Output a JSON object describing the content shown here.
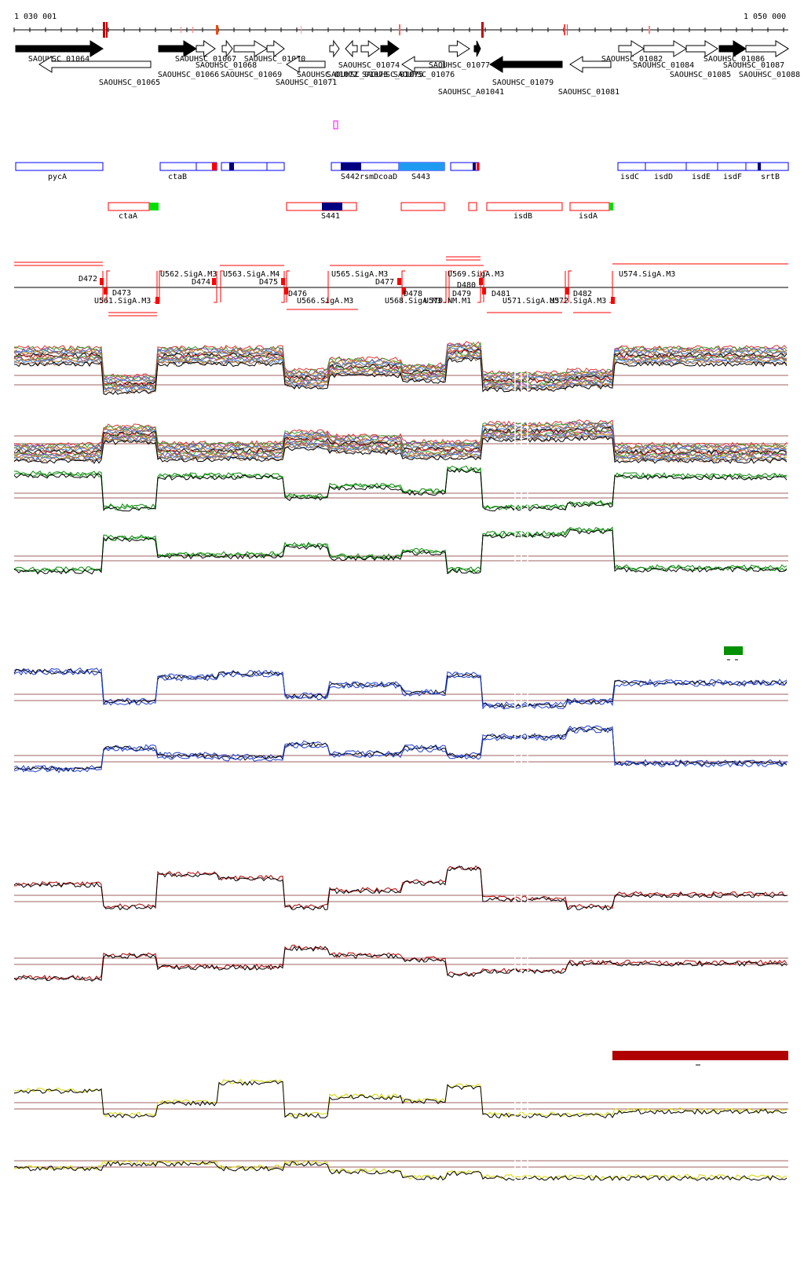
{
  "ruler": {
    "start_label": "1 030 001",
    "end_label": "1 050 000"
  },
  "colors": {
    "gene_forward_strong": "#000000",
    "gene_outline": "#000000",
    "annotation_blue": "#0000ff",
    "annotation_dark_blue": "#000080",
    "annotation_light_blue": "#1e9bf0",
    "annotation_red": "#ff0000",
    "annotation_green": "#00e000",
    "promoter_red": "#ff0000",
    "trace_green": "#0b8a0b",
    "trace_blue": "#1f3fd0",
    "trace_red": "#b00000",
    "trace_yellow": "#d6d600",
    "trace_black": "#000000",
    "threshold_brown": "#a06060",
    "bar_green": "#009000",
    "bar_darkred": "#b00000",
    "magenta_box": "#ff00ff"
  },
  "genes": [
    {
      "label": "SAOUHSC_01064"
    },
    {
      "label": "SAOUHSC_01065"
    },
    {
      "label": "SAOUHSC_01066"
    },
    {
      "label": "SAOUHSC_01067"
    },
    {
      "label": "SAOUHSC_01068"
    },
    {
      "label": "SAOUHSC_01069"
    },
    {
      "label": "SAOUHSC_01070"
    },
    {
      "label": "SAOUHSC_01071"
    },
    {
      "label": "SAOUHSC_01072"
    },
    {
      "label": "SAOUHSC_01073"
    },
    {
      "label": "SAOUHSC_01074"
    },
    {
      "label": "SAOUHSC_01075"
    },
    {
      "label": "SAOUHSC_01076"
    },
    {
      "label": "SAOUHSC_01077"
    },
    {
      "label": "SAOUHSC_A01041"
    },
    {
      "label": "SAOUHSC_01079"
    },
    {
      "label": "SAOUHSC_01081"
    },
    {
      "label": "SAOUHSC_01082"
    },
    {
      "label": "SAOUHSC_01084"
    },
    {
      "label": "SAOUHSC_01085"
    },
    {
      "label": "SAOUHSC_01086"
    },
    {
      "label": "SAOUHSC_01087"
    },
    {
      "label": "SAOUHSC_01088"
    }
  ],
  "annotations_top": [
    {
      "label": "pycA"
    },
    {
      "label": "ctaB"
    },
    {
      "label": "S442rsmDcoaD"
    },
    {
      "label": "S443"
    },
    {
      "label": "isdC"
    },
    {
      "label": "isdD"
    },
    {
      "label": "isdE"
    },
    {
      "label": "isdF"
    },
    {
      "label": "srtB"
    }
  ],
  "annotations_bottom": [
    {
      "label": "ctaA"
    },
    {
      "label": "S441"
    },
    {
      "label": "isdB"
    },
    {
      "label": "isdA"
    }
  ],
  "segments": [
    {
      "label": "D472"
    },
    {
      "label": "D473"
    },
    {
      "label": "U561.SigA.M3"
    },
    {
      "label": "U562.SigA.M3"
    },
    {
      "label": "D474"
    },
    {
      "label": "U563.SigA.M4"
    },
    {
      "label": "D475"
    },
    {
      "label": "D476"
    },
    {
      "label": "U565.SigA.M3"
    },
    {
      "label": "U566.SigA.M3"
    },
    {
      "label": "D477"
    },
    {
      "label": "D478"
    },
    {
      "label": "U568.SigA.M3"
    },
    {
      "label": "U570.NM.M1"
    },
    {
      "label": "U569.SigA.M3"
    },
    {
      "label": "D479"
    },
    {
      "label": "D480"
    },
    {
      "label": "D481"
    },
    {
      "label": "U571.SigA.M3"
    },
    {
      "label": "U572.SigA.M3"
    },
    {
      "label": "D482"
    },
    {
      "label": "U574.SigA.M3"
    }
  ]
}
